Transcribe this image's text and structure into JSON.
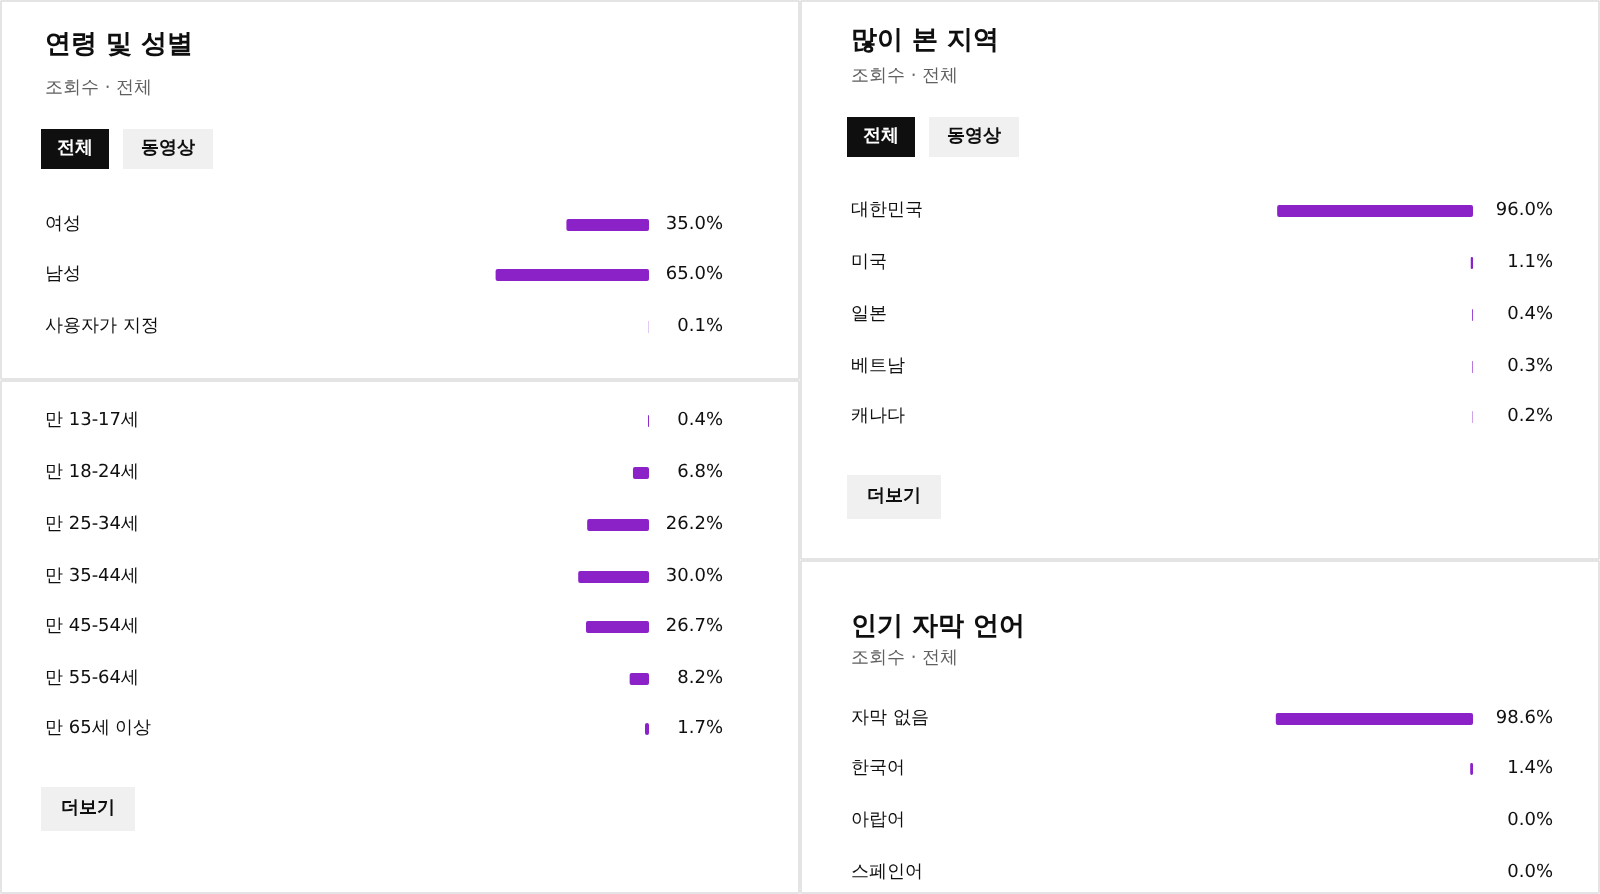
{
  "chart_data": [
    {
      "type": "bar",
      "orientation": "horizontal",
      "title": "연령 및 성별",
      "subtitle": "조회수 · 전체",
      "annotations": [
        "전체",
        "동영상"
      ],
      "categories": [
        "여성",
        "남성",
        "사용자가 지정"
      ],
      "values": [
        35.0,
        65.0,
        0.1
      ],
      "value_labels": [
        "35.0%",
        "65.0%",
        "0.1%"
      ],
      "color": "#8a22c8"
    },
    {
      "type": "bar",
      "orientation": "horizontal",
      "annotations": [
        "더보기"
      ],
      "categories": [
        "만 13-17세",
        "만 18-24세",
        "만 25-34세",
        "만 35-44세",
        "만 45-54세",
        "만 55-64세",
        "만 65세 이상"
      ],
      "values": [
        0.4,
        6.8,
        26.2,
        30.0,
        26.7,
        8.2,
        1.7
      ],
      "value_labels": [
        "0.4%",
        "6.8%",
        "26.2%",
        "30.0%",
        "26.7%",
        "8.2%",
        "1.7%"
      ],
      "color": "#8a22c8"
    },
    {
      "type": "bar",
      "orientation": "horizontal",
      "title": "많이 본 지역",
      "subtitle": "조회수 · 전체",
      "annotations": [
        "전체",
        "동영상",
        "더보기"
      ],
      "categories": [
        "대한민국",
        "미국",
        "일본",
        "베트남",
        "캐나다"
      ],
      "values": [
        96.0,
        1.1,
        0.4,
        0.3,
        0.2
      ],
      "value_labels": [
        "96.0%",
        "1.1%",
        "0.4%",
        "0.3%",
        "0.2%"
      ],
      "color": "#8a22c8"
    },
    {
      "type": "bar",
      "orientation": "horizontal",
      "title": "인기 자막 언어",
      "subtitle": "조회수 · 전체",
      "categories": [
        "자막 없음",
        "한국어",
        "아랍어",
        "스페인어"
      ],
      "values": [
        98.6,
        1.4,
        0.0,
        0.0
      ],
      "value_labels": [
        "98.6%",
        "1.4%",
        "0.0%",
        "0.0%"
      ],
      "color": "#8a22c8"
    }
  ]
}
